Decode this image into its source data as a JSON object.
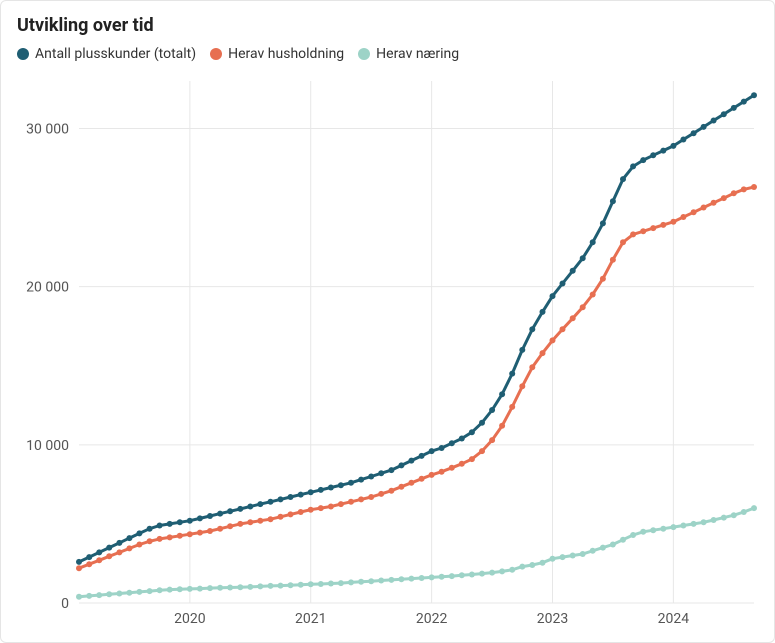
{
  "title": "Utvikling over tid",
  "legend": [
    {
      "label": "Antall plusskunder (totalt)",
      "color": "#1f5e73"
    },
    {
      "label": "Herav husholdning",
      "color": "#e76f51"
    },
    {
      "label": "Herav næring",
      "color": "#9dd3c7"
    }
  ],
  "chart": {
    "type": "line",
    "background_color": "#ffffff",
    "grid_color": "#e7e7e7",
    "axis_text_color": "#555555",
    "axis_fontsize": 14,
    "line_width": 3,
    "marker_radius": 3,
    "x": {
      "min": 2019.083,
      "max": 2024.667,
      "tick_years": [
        2020,
        2021,
        2022,
        2023,
        2024
      ]
    },
    "y": {
      "min": 0,
      "max": 33000,
      "ticks": [
        0,
        10000,
        20000,
        30000
      ],
      "tick_labels": [
        "0",
        "10 000",
        "20 000",
        "30 000"
      ]
    },
    "series": [
      {
        "name": "Antall plusskunder (totalt)",
        "color": "#1f5e73",
        "x": [
          2019.083,
          2019.167,
          2019.25,
          2019.333,
          2019.417,
          2019.5,
          2019.583,
          2019.667,
          2019.75,
          2019.833,
          2019.917,
          2020.0,
          2020.083,
          2020.167,
          2020.25,
          2020.333,
          2020.417,
          2020.5,
          2020.583,
          2020.667,
          2020.75,
          2020.833,
          2020.917,
          2021.0,
          2021.083,
          2021.167,
          2021.25,
          2021.333,
          2021.417,
          2021.5,
          2021.583,
          2021.667,
          2021.75,
          2021.833,
          2021.917,
          2022.0,
          2022.083,
          2022.167,
          2022.25,
          2022.333,
          2022.417,
          2022.5,
          2022.583,
          2022.667,
          2022.75,
          2022.833,
          2022.917,
          2023.0,
          2023.083,
          2023.167,
          2023.25,
          2023.333,
          2023.417,
          2023.5,
          2023.583,
          2023.667,
          2023.75,
          2023.833,
          2023.917,
          2024.0,
          2024.083,
          2024.167,
          2024.25,
          2024.333,
          2024.417,
          2024.5,
          2024.583,
          2024.667
        ],
        "y": [
          2600,
          2900,
          3200,
          3500,
          3800,
          4100,
          4400,
          4700,
          4900,
          5000,
          5100,
          5200,
          5350,
          5500,
          5650,
          5800,
          5950,
          6100,
          6250,
          6400,
          6550,
          6700,
          6850,
          7000,
          7150,
          7300,
          7450,
          7600,
          7800,
          8000,
          8200,
          8400,
          8700,
          9000,
          9300,
          9600,
          9800,
          10100,
          10400,
          10800,
          11400,
          12200,
          13200,
          14500,
          16000,
          17300,
          18400,
          19400,
          20200,
          21000,
          21800,
          22800,
          24000,
          25400,
          26800,
          27600,
          28000,
          28300,
          28600,
          28900,
          29300,
          29700,
          30100,
          30500,
          30900,
          31300,
          31700,
          32100
        ]
      },
      {
        "name": "Herav husholdning",
        "color": "#e76f51",
        "x": [
          2019.083,
          2019.167,
          2019.25,
          2019.333,
          2019.417,
          2019.5,
          2019.583,
          2019.667,
          2019.75,
          2019.833,
          2019.917,
          2020.0,
          2020.083,
          2020.167,
          2020.25,
          2020.333,
          2020.417,
          2020.5,
          2020.583,
          2020.667,
          2020.75,
          2020.833,
          2020.917,
          2021.0,
          2021.083,
          2021.167,
          2021.25,
          2021.333,
          2021.417,
          2021.5,
          2021.583,
          2021.667,
          2021.75,
          2021.833,
          2021.917,
          2022.0,
          2022.083,
          2022.167,
          2022.25,
          2022.333,
          2022.417,
          2022.5,
          2022.583,
          2022.667,
          2022.75,
          2022.833,
          2022.917,
          2023.0,
          2023.083,
          2023.167,
          2023.25,
          2023.333,
          2023.417,
          2023.5,
          2023.583,
          2023.667,
          2023.75,
          2023.833,
          2023.917,
          2024.0,
          2024.083,
          2024.167,
          2024.25,
          2024.333,
          2024.417,
          2024.5,
          2024.583,
          2024.667
        ],
        "y": [
          2200,
          2450,
          2700,
          2950,
          3200,
          3450,
          3700,
          3900,
          4050,
          4150,
          4250,
          4350,
          4450,
          4550,
          4700,
          4850,
          5000,
          5100,
          5200,
          5300,
          5450,
          5600,
          5750,
          5900,
          6000,
          6100,
          6250,
          6400,
          6550,
          6700,
          6900,
          7100,
          7350,
          7600,
          7850,
          8100,
          8300,
          8550,
          8800,
          9100,
          9600,
          10300,
          11200,
          12400,
          13700,
          14900,
          15800,
          16600,
          17300,
          18000,
          18700,
          19500,
          20500,
          21700,
          22800,
          23300,
          23500,
          23700,
          23900,
          24100,
          24400,
          24700,
          25000,
          25300,
          25600,
          25900,
          26150,
          26300
        ]
      },
      {
        "name": "Herav næring",
        "color": "#9dd3c7",
        "x": [
          2019.083,
          2019.167,
          2019.25,
          2019.333,
          2019.417,
          2019.5,
          2019.583,
          2019.667,
          2019.75,
          2019.833,
          2019.917,
          2020.0,
          2020.083,
          2020.167,
          2020.25,
          2020.333,
          2020.417,
          2020.5,
          2020.583,
          2020.667,
          2020.75,
          2020.833,
          2020.917,
          2021.0,
          2021.083,
          2021.167,
          2021.25,
          2021.333,
          2021.417,
          2021.5,
          2021.583,
          2021.667,
          2021.75,
          2021.833,
          2021.917,
          2022.0,
          2022.083,
          2022.167,
          2022.25,
          2022.333,
          2022.417,
          2022.5,
          2022.583,
          2022.667,
          2022.75,
          2022.833,
          2022.917,
          2023.0,
          2023.083,
          2023.167,
          2023.25,
          2023.333,
          2023.417,
          2023.5,
          2023.583,
          2023.667,
          2023.75,
          2023.833,
          2023.917,
          2024.0,
          2024.083,
          2024.167,
          2024.25,
          2024.333,
          2024.417,
          2024.5,
          2024.583,
          2024.667
        ],
        "y": [
          400,
          450,
          500,
          550,
          600,
          650,
          700,
          750,
          800,
          850,
          870,
          890,
          910,
          940,
          960,
          980,
          1000,
          1020,
          1050,
          1080,
          1100,
          1120,
          1150,
          1180,
          1200,
          1230,
          1260,
          1300,
          1340,
          1380,
          1420,
          1460,
          1500,
          1540,
          1580,
          1620,
          1660,
          1700,
          1750,
          1800,
          1860,
          1920,
          2000,
          2100,
          2300,
          2400,
          2550,
          2800,
          2900,
          3000,
          3100,
          3300,
          3500,
          3700,
          4000,
          4300,
          4500,
          4600,
          4700,
          4800,
          4900,
          5000,
          5100,
          5250,
          5400,
          5550,
          5750,
          6000
        ]
      }
    ]
  }
}
